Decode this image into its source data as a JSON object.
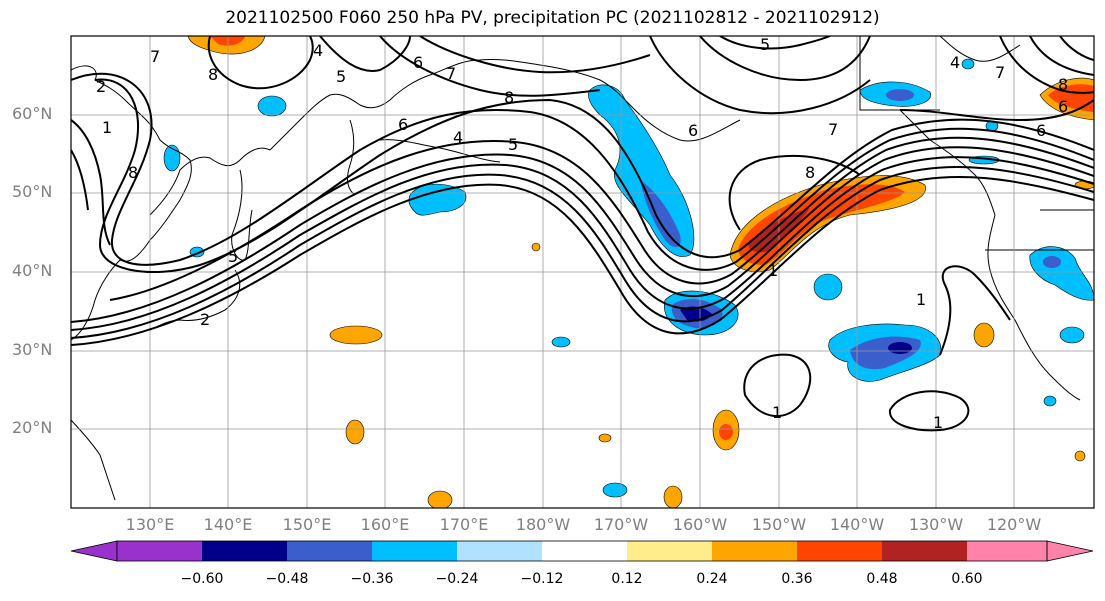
{
  "title": "2021102500 F060 250 hPa PV, precipitation PC (2021102812 - 2021102912)",
  "lat_labels": [
    "60°N",
    "50°N",
    "40°N",
    "30°N",
    "20°N"
  ],
  "lon_labels": [
    "130°E",
    "140°E",
    "150°E",
    "160°E",
    "170°E",
    "180°W",
    "170°W",
    "160°W",
    "150°W",
    "140°W",
    "130°W",
    "120°W"
  ],
  "colorbar": {
    "colors": [
      "#9932cc",
      "#00008b",
      "#3a5fcd",
      "#00bfff",
      "#b0e2ff",
      "#ffffff",
      "#ffec8b",
      "#ffa500",
      "#ff4500",
      "#b22222",
      "#ff82ab"
    ],
    "ticks": [
      "−0.60",
      "−0.48",
      "−0.36",
      "−0.24",
      "−0.12",
      "0.12",
      "0.24",
      "0.36",
      "0.48",
      "0.60"
    ]
  },
  "contour_labels": [
    "7",
    "4",
    "5",
    "5",
    "6",
    "7",
    "8",
    "2",
    "1",
    "8",
    "8",
    "6",
    "4",
    "5",
    "6",
    "7",
    "8",
    "1",
    "1",
    "1",
    "1",
    "7",
    "8",
    "6",
    "4",
    "6",
    "5",
    "2"
  ]
}
